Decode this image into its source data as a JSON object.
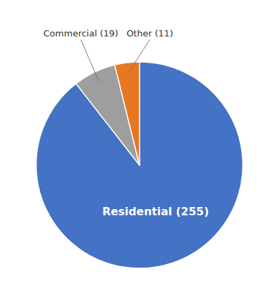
{
  "chart_data": {
    "type": "pie",
    "categories": [
      "Residential (255)",
      "Commercial (19)",
      "Other (11)"
    ],
    "values": [
      255,
      19,
      11
    ],
    "colors": [
      "#4472C4",
      "#9E9E9E",
      "#E87722"
    ]
  }
}
